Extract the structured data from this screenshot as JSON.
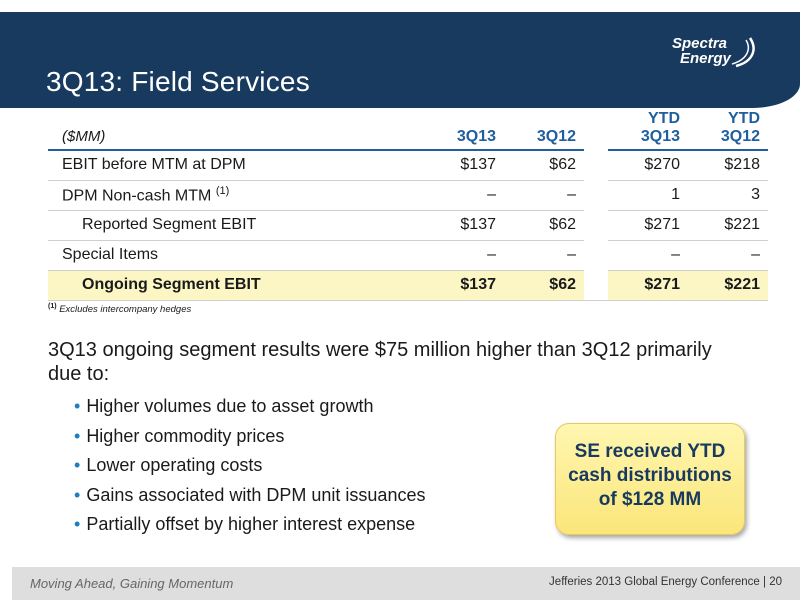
{
  "slide": {
    "title": "3Q13: Field Services",
    "logo": {
      "line1": "Spectra",
      "line2": "Energy"
    }
  },
  "table": {
    "unit_label": "($MM)",
    "columns": [
      "3Q13",
      "3Q12",
      "YTD 3Q13",
      "YTD 3Q12"
    ],
    "rows": [
      {
        "label": "EBIT before MTM at DPM",
        "sup": "",
        "values": [
          "$137",
          "$62",
          "$270",
          "$218"
        ]
      },
      {
        "label": "DPM Non-cash MTM",
        "sup": "(1)",
        "values": [
          "–",
          "–",
          "1",
          "3"
        ]
      },
      {
        "label": "Reported Segment EBIT",
        "sup": "",
        "values": [
          "$137",
          "$62",
          "$271",
          "$221"
        ]
      },
      {
        "label": "Special Items",
        "sup": "",
        "values": [
          "–",
          "–",
          "–",
          "–"
        ]
      },
      {
        "label": "Ongoing Segment EBIT",
        "sup": "",
        "values": [
          "$137",
          "$62",
          "$271",
          "$221"
        ]
      }
    ]
  },
  "footnote": {
    "marker": "(1)",
    "text": "Excludes intercompany hedges"
  },
  "summary": "3Q13 ongoing segment results were $75 million higher than 3Q12 primarily due to:",
  "bullets": [
    "Higher volumes  due to asset growth",
    "Higher commodity prices",
    "Lower operating costs",
    "Gains associated with DPM unit issuances",
    "Partially offset by higher interest expense"
  ],
  "callout": {
    "line1": "SE received YTD",
    "line2": "cash distributions",
    "line3": "of $128 MM"
  },
  "footer": {
    "tagline": "Moving Ahead, Gaining Momentum",
    "conference": "Jefferies 2013 Global Energy Conference",
    "page": "20"
  },
  "colors": {
    "header_bg": "#173a5e",
    "accent_blue": "#1f5f9e",
    "highlight_row": "#fbf6c4",
    "callout_fill": "#fbe67a"
  }
}
